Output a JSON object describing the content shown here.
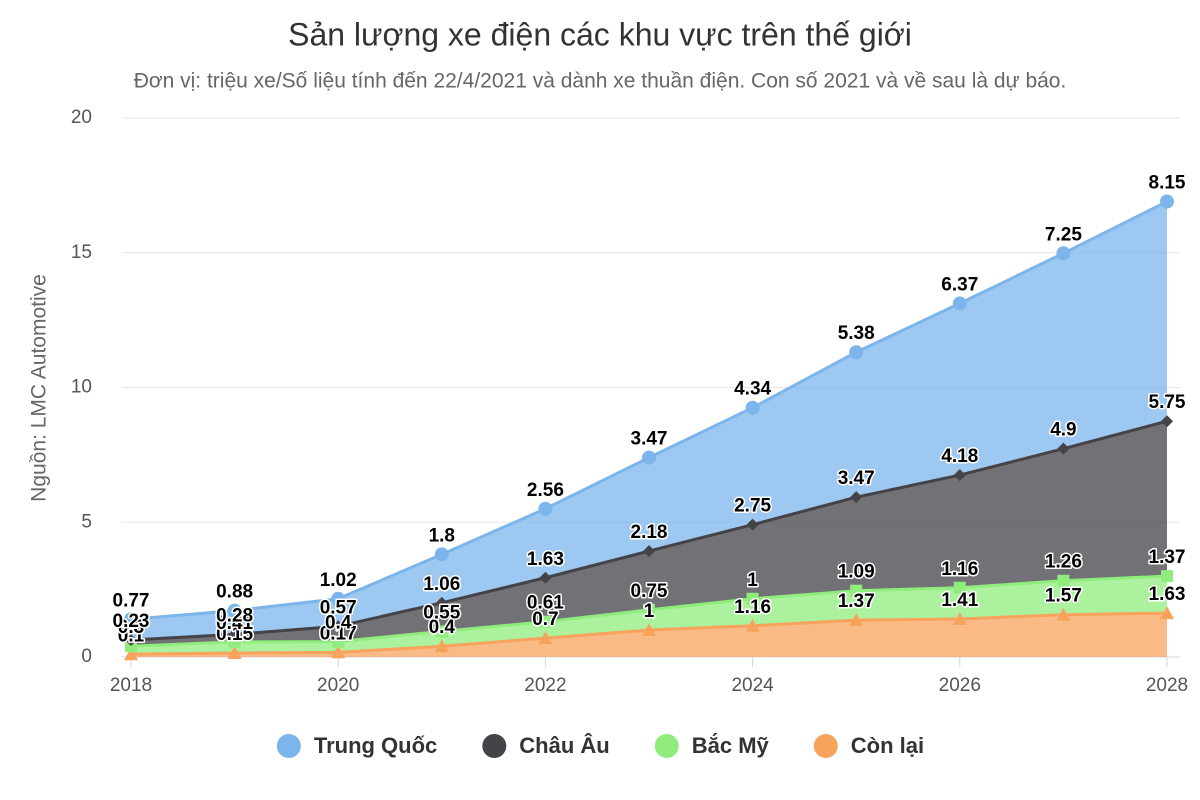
{
  "chart_data": {
    "type": "stacked_area",
    "title": "Sản lượng xe điện các khu vực trên thế giới",
    "subtitle": "Đơn vị: triệu xe/Số liệu tính đến 22/4/2021 và dành xe thuần điện. Con số 2021 và về sau là dự báo.",
    "y_label": "Nguồn: LMC Automotive",
    "x": [
      2018,
      2019,
      2020,
      2021,
      2022,
      2023,
      2024,
      2025,
      2026,
      2027,
      2028
    ],
    "xlim": [
      2018,
      2028
    ],
    "xticks": [
      2018,
      2020,
      2022,
      2024,
      2026,
      2028
    ],
    "ylim": [
      0,
      20
    ],
    "yticks": [
      0,
      5,
      10,
      15,
      20
    ],
    "grid": true,
    "series": [
      {
        "name": "Trung Quốc",
        "color": "#7cb5ec",
        "marker": "circle",
        "values": [
          0.77,
          0.88,
          1.02,
          1.8,
          2.56,
          3.47,
          4.34,
          5.38,
          6.37,
          7.25,
          8.15
        ]
      },
      {
        "name": "Châu Âu",
        "color": "#434348",
        "marker": "diamond",
        "values": [
          0.23,
          0.28,
          0.57,
          1.06,
          1.63,
          2.18,
          2.75,
          3.47,
          4.18,
          4.9,
          5.75
        ]
      },
      {
        "name": "Bắc Mỹ",
        "color": "#90ed7d",
        "marker": "square",
        "values": [
          0.3,
          0.41,
          0.4,
          0.55,
          0.61,
          0.75,
          1,
          1.09,
          1.16,
          1.26,
          1.37
        ]
      },
      {
        "name": "Còn lại",
        "color": "#f7a35c",
        "marker": "triangle",
        "values": [
          0.1,
          0.15,
          0.17,
          0.4,
          0.7,
          1.0,
          1.16,
          1.37,
          1.41,
          1.57,
          1.63
        ]
      }
    ]
  }
}
